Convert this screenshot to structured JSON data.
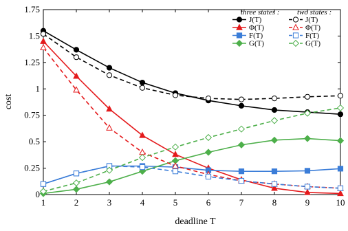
{
  "chart_data": {
    "type": "line",
    "xlabel": "deadline T",
    "ylabel": "cost",
    "xlim": [
      1,
      10
    ],
    "ylim": [
      0,
      1.75
    ],
    "x_ticks": [
      "1",
      "2",
      "3",
      "4",
      "5",
      "6",
      "7",
      "8",
      "9",
      "10"
    ],
    "y_ticks": [
      "0",
      "0.25",
      "0.5",
      "0.75",
      "1",
      "1.25",
      "1.5",
      "1.75"
    ],
    "grid": false,
    "legend_placement": "top-right",
    "legend_groups": [
      "three states :",
      "two states :"
    ],
    "x": [
      1,
      2,
      3,
      4,
      5,
      6,
      7,
      8,
      9,
      10
    ],
    "series": [
      {
        "name": "J(T)",
        "group": "three states",
        "color": "#000000",
        "marker": "filled-circle",
        "dash": "solid",
        "values": [
          1.55,
          1.37,
          1.2,
          1.06,
          0.96,
          0.89,
          0.84,
          0.8,
          0.78,
          0.76
        ]
      },
      {
        "name": "Φ(T)",
        "group": "three states",
        "color": "#e41a1c",
        "marker": "filled-triangle",
        "dash": "solid",
        "values": [
          1.45,
          1.12,
          0.81,
          0.56,
          0.38,
          0.25,
          0.14,
          0.06,
          0.02,
          0.01
        ]
      },
      {
        "name": "F(T)",
        "group": "three states",
        "color": "#3b7dd8",
        "marker": "filled-square",
        "dash": "solid",
        "values": [
          0.1,
          0.2,
          0.27,
          0.27,
          0.26,
          0.23,
          0.22,
          0.22,
          0.225,
          0.245
        ]
      },
      {
        "name": "G(T)",
        "group": "three states",
        "color": "#4daf4a",
        "marker": "filled-diamond",
        "dash": "solid",
        "values": [
          0.01,
          0.05,
          0.12,
          0.22,
          0.32,
          0.4,
          0.47,
          0.515,
          0.53,
          0.51
        ]
      },
      {
        "name": "J(T)",
        "group": "two states",
        "color": "#000000",
        "marker": "open-circle",
        "dash": "dashed",
        "values": [
          1.52,
          1.3,
          1.13,
          1.01,
          0.94,
          0.91,
          0.9,
          0.91,
          0.925,
          0.935
        ]
      },
      {
        "name": "Φ(T)",
        "group": "two states",
        "color": "#e41a1c",
        "marker": "open-triangle",
        "dash": "dashed",
        "values": [
          1.39,
          0.99,
          0.63,
          0.4,
          0.27,
          0.19,
          0.13,
          0.1,
          0.075,
          0.06
        ]
      },
      {
        "name": "F(T)",
        "group": "two states",
        "color": "#3b7dd8",
        "marker": "open-square",
        "dash": "dashed",
        "values": [
          0.1,
          0.2,
          0.27,
          0.26,
          0.22,
          0.17,
          0.13,
          0.1,
          0.075,
          0.06
        ]
      },
      {
        "name": "G(T)",
        "group": "two states",
        "color": "#4daf4a",
        "marker": "open-diamond",
        "dash": "dashed",
        "values": [
          0.03,
          0.11,
          0.23,
          0.35,
          0.45,
          0.54,
          0.62,
          0.7,
          0.77,
          0.82
        ]
      }
    ]
  }
}
